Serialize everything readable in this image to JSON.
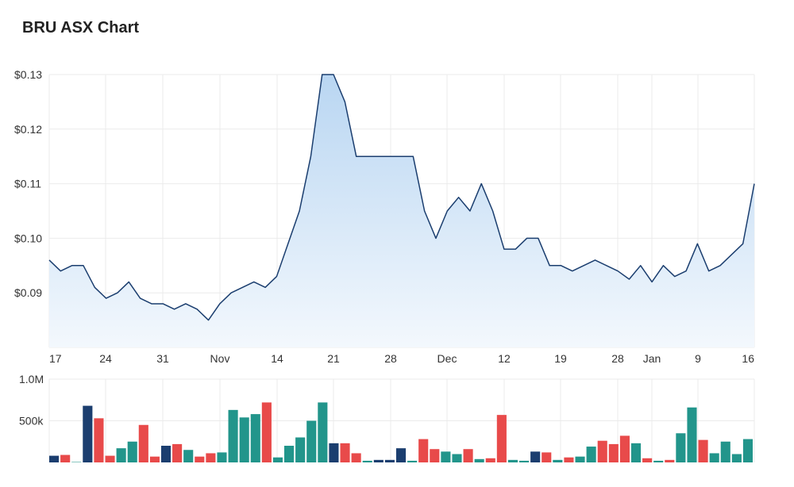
{
  "title": "BRU ASX Chart",
  "chart_data": [
    {
      "type": "area",
      "ylim": [
        0.08,
        0.13
      ],
      "y_ticks": [
        {
          "value": 0.13,
          "label": "$0.13"
        },
        {
          "value": 0.12,
          "label": "$0.12"
        },
        {
          "value": 0.11,
          "label": "$0.11"
        },
        {
          "value": 0.1,
          "label": "$0.10"
        },
        {
          "value": 0.09,
          "label": "$0.09"
        }
      ],
      "x_ticks": [
        "17",
        "24",
        "31",
        "Nov",
        "14",
        "21",
        "28",
        "Dec",
        "12",
        "19",
        "28",
        "Jan",
        "9",
        "16"
      ],
      "values": [
        0.096,
        0.094,
        0.095,
        0.095,
        0.091,
        0.089,
        0.09,
        0.092,
        0.089,
        0.088,
        0.088,
        0.087,
        0.088,
        0.087,
        0.085,
        0.088,
        0.09,
        0.091,
        0.092,
        0.091,
        0.093,
        0.099,
        0.105,
        0.115,
        0.13,
        0.13,
        0.125,
        0.115,
        0.115,
        0.115,
        0.115,
        0.115,
        0.115,
        0.105,
        0.1,
        0.105,
        0.1075,
        0.105,
        0.11,
        0.105,
        0.098,
        0.098,
        0.1,
        0.1,
        0.095,
        0.095,
        0.094,
        0.095,
        0.096,
        0.095,
        0.094,
        0.0925,
        0.095,
        0.092,
        0.095,
        0.093,
        0.094,
        0.099,
        0.094,
        0.095,
        0.097,
        0.099,
        0.11
      ],
      "line_color": "#1b3e6f",
      "fill_top_color": "#b9d6f2",
      "fill_bottom_color": "#f3f8fd",
      "grid": true
    },
    {
      "type": "bar",
      "ylim": [
        0,
        1000000
      ],
      "y_ticks": [
        {
          "value": 1000000,
          "label": "1.0M"
        },
        {
          "value": 500000,
          "label": "500k"
        }
      ],
      "values": [
        80000,
        90000,
        5000,
        680000,
        530000,
        80000,
        170000,
        250000,
        450000,
        70000,
        200000,
        220000,
        150000,
        70000,
        110000,
        120000,
        630000,
        540000,
        580000,
        720000,
        60000,
        200000,
        300000,
        500000,
        720000,
        230000,
        230000,
        110000,
        20000,
        30000,
        30000,
        170000,
        20000,
        280000,
        160000,
        130000,
        100000,
        160000,
        40000,
        50000,
        570000,
        30000,
        20000,
        130000,
        120000,
        30000,
        60000,
        70000,
        190000,
        260000,
        220000,
        320000,
        230000,
        50000,
        20000,
        30000,
        350000,
        660000,
        270000,
        110000,
        250000,
        100000,
        280000
      ],
      "bar_colors": [
        "navy",
        "red",
        "teal",
        "navy",
        "red",
        "red",
        "teal",
        "teal",
        "red",
        "red",
        "navy",
        "red",
        "teal",
        "red",
        "red",
        "teal",
        "teal",
        "teal",
        "teal",
        "red",
        "teal",
        "teal",
        "teal",
        "teal",
        "teal",
        "navy",
        "red",
        "red",
        "teal",
        "navy",
        "navy",
        "navy",
        "teal",
        "red",
        "red",
        "teal",
        "teal",
        "red",
        "teal",
        "red",
        "red",
        "teal",
        "teal",
        "navy",
        "red",
        "teal",
        "red",
        "teal",
        "teal",
        "red",
        "red",
        "red",
        "teal",
        "red",
        "teal",
        "red",
        "teal",
        "teal",
        "red",
        "teal",
        "teal",
        "teal",
        "teal"
      ],
      "colors": {
        "navy": "#1b3e6f",
        "red": "#e84a4a",
        "teal": "#22958b"
      }
    }
  ]
}
